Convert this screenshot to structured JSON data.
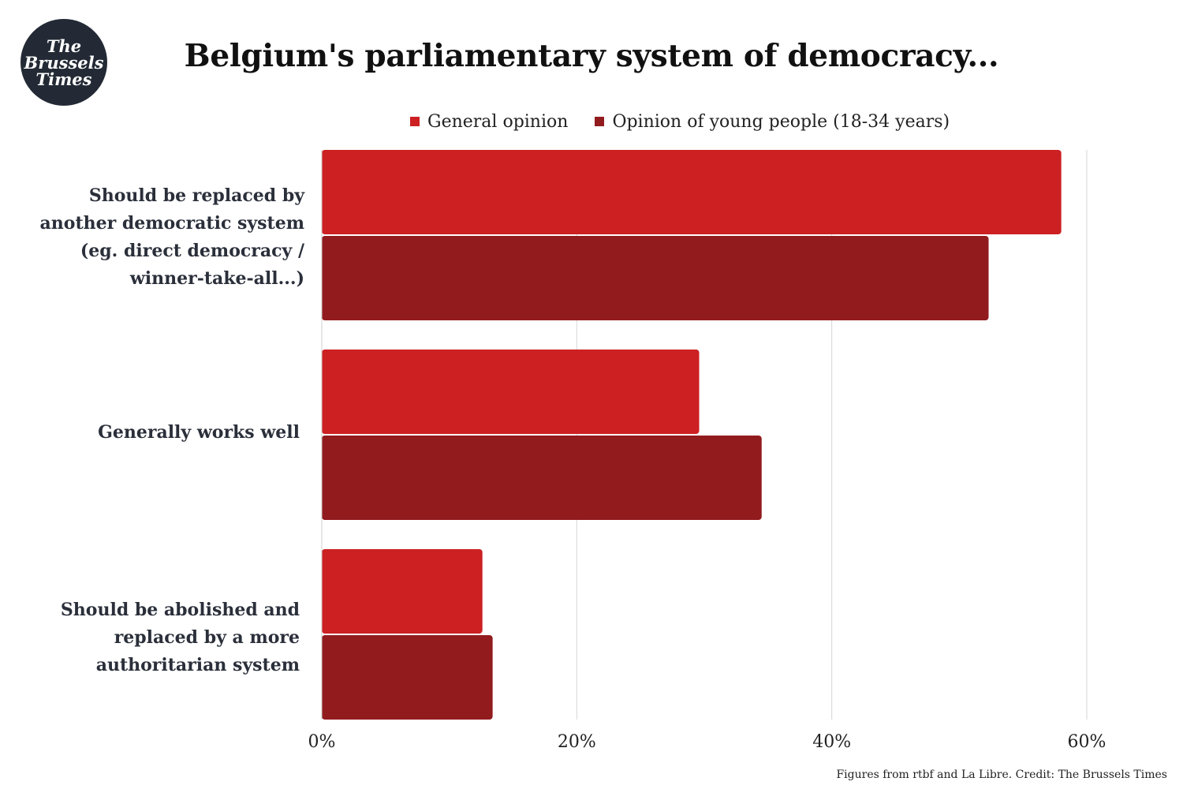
{
  "logo": {
    "line1": "The",
    "line2": "Brussels",
    "line3": "Times"
  },
  "header": {
    "title": "Belgium's parliamentary system of democracy..."
  },
  "source": "Figures from rtbf and La Libre. Credit: The Brussels Times",
  "chart_data": {
    "type": "bar",
    "orientation": "horizontal",
    "title": "Belgium's parliamentary system of democracy...",
    "categories": [
      "Should be replaced by another democratic system (eg. direct democracy / winner-take-all...)",
      "Generally works well",
      "Should be abolished and replaced by a more authoritarian system"
    ],
    "series": [
      {
        "name": "General opinion",
        "color": "#cc2022",
        "values": [
          58,
          29.6,
          12.6
        ]
      },
      {
        "name": "Opinion of young people (18-34 years)",
        "color": "#921b1e",
        "values": [
          52.3,
          34.5,
          13.4
        ]
      }
    ],
    "xlim": [
      0,
      60
    ],
    "ticks": [
      "0%",
      "20%",
      "40%",
      "60%"
    ],
    "tick_values": [
      0,
      20,
      40,
      60
    ],
    "grid": true,
    "legend": "top"
  }
}
